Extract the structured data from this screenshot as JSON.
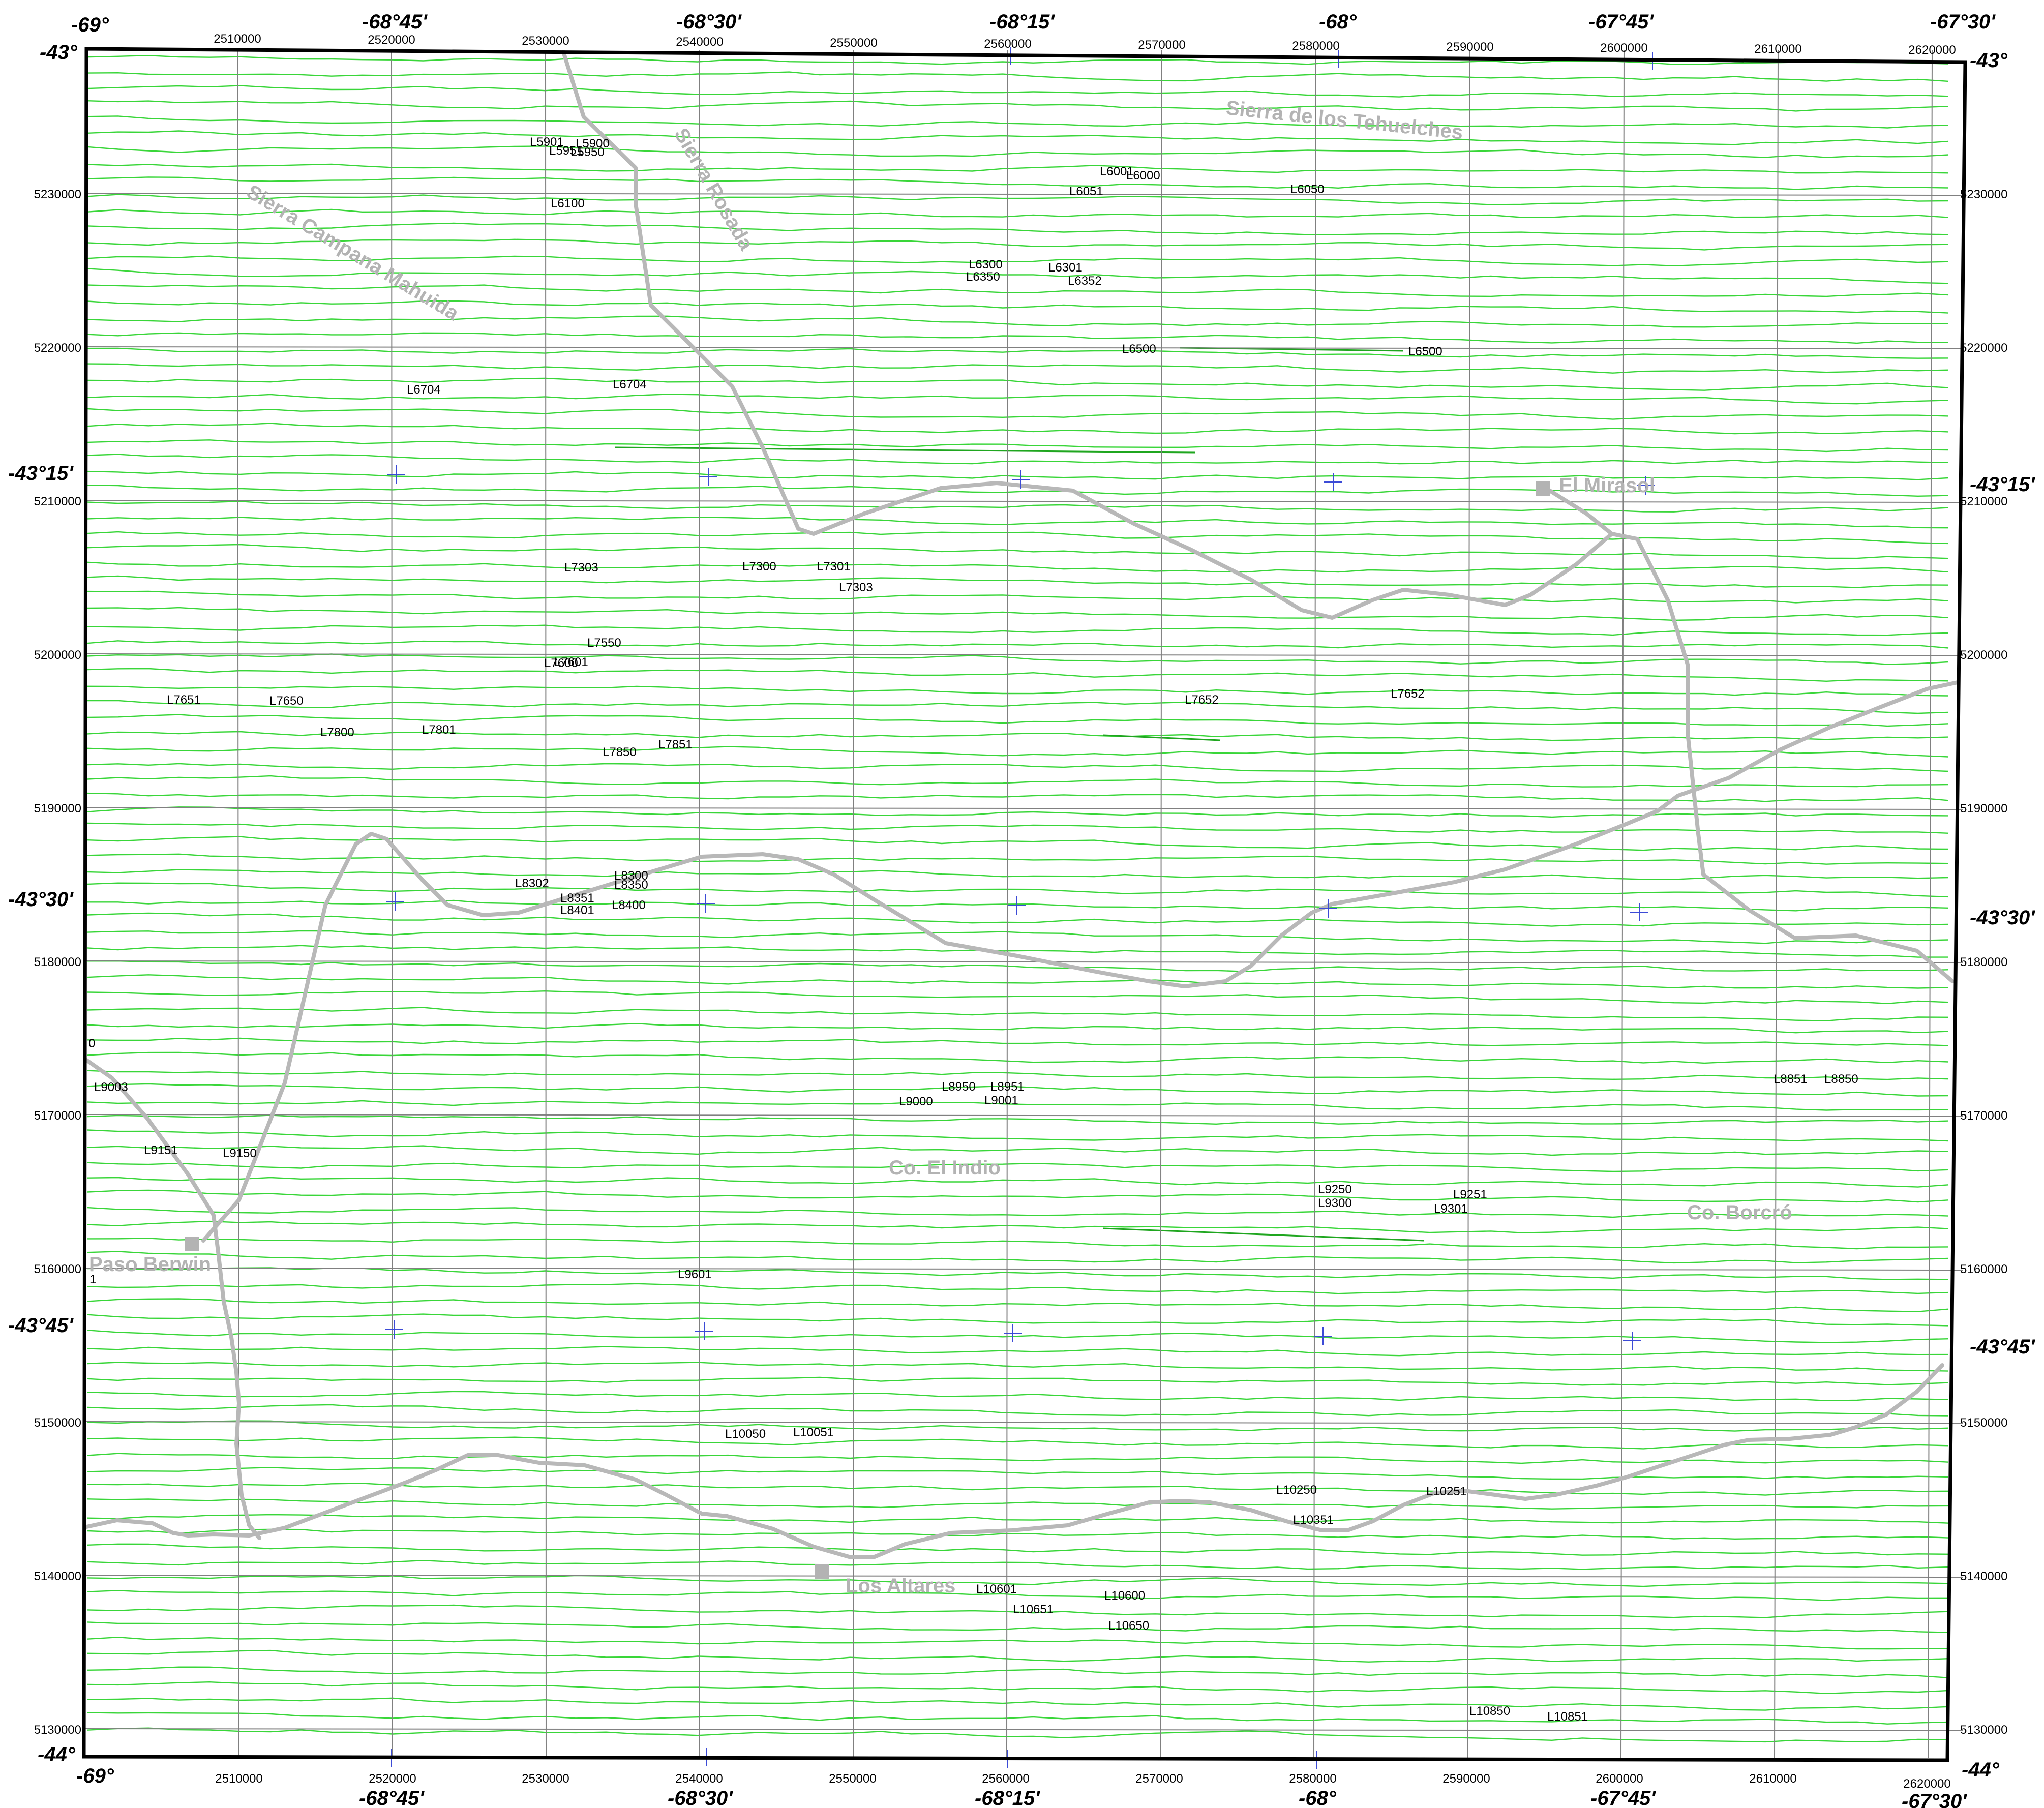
{
  "colors": {
    "flightline": "#39d639",
    "flightline_dark": "#1fa61f",
    "grid": "#808080",
    "road": "#b8b8b8",
    "graticule_cross": "#3c4bd6",
    "frame": "#000000",
    "place": "#b3b3b3"
  },
  "icons": {
    "town": "grey-square-town-marker",
    "graticule": "blue-cross-graticule-marker"
  },
  "easting_labels": [
    "2510000",
    "2520000",
    "2530000",
    "2540000",
    "2550000",
    "2560000",
    "2570000",
    "2580000",
    "2590000",
    "2600000",
    "2610000",
    "2620000"
  ],
  "northing_labels": [
    "5230000",
    "5220000",
    "5210000",
    "5200000",
    "5190000",
    "5180000",
    "5170000",
    "5160000",
    "5150000",
    "5140000",
    "5130000"
  ],
  "longitude_labels": [
    "-69°",
    "-68°45'",
    "-68°30'",
    "-68°15'",
    "-68°",
    "-67°45'",
    "-67°30'"
  ],
  "latitude_labels": [
    "-43°",
    "-43°15'",
    "-43°30'",
    "-43°45'",
    "-44°"
  ],
  "places": [
    {
      "name": "El Mirasol",
      "icon": "town"
    },
    {
      "name": "Paso Berwin",
      "icon": "town"
    },
    {
      "name": "Los Altares",
      "icon": "town"
    }
  ],
  "features": [
    "Sierra de los Tehuelches",
    "Sierra Rosada",
    "Sierra Campana Mahuida",
    "Co. El Indio",
    "Co. Borcró"
  ],
  "edge_marks": [
    "0",
    "1"
  ],
  "line_labels": [
    "L5901",
    "L5900",
    "L5951",
    "L5950",
    "L6100",
    "L6001",
    "L6000",
    "L6051",
    "L6050",
    "L6300",
    "L6301",
    "L6350",
    "L6352",
    "L6500",
    "L6500",
    "L6704",
    "L6704",
    "L7303",
    "L7300",
    "L7301",
    "L7303",
    "L7550",
    "L7600",
    "L7601",
    "L7651",
    "L7650",
    "L7652",
    "L7652",
    "L7800",
    "L7801",
    "L7850",
    "L7851",
    "L8302",
    "L8300",
    "L8350",
    "L8351",
    "L8401",
    "L8400",
    "L8950",
    "L8951",
    "L9000",
    "L9001",
    "L8851",
    "L8850",
    "L9003",
    "L9151",
    "L9150",
    "L9250",
    "L9251",
    "L9300",
    "L9301",
    "L9601",
    "L10050",
    "L10051",
    "L10250",
    "L10251",
    "L10351",
    "L10601",
    "L10600",
    "L10651",
    "L10650",
    "L10850",
    "L10851"
  ]
}
